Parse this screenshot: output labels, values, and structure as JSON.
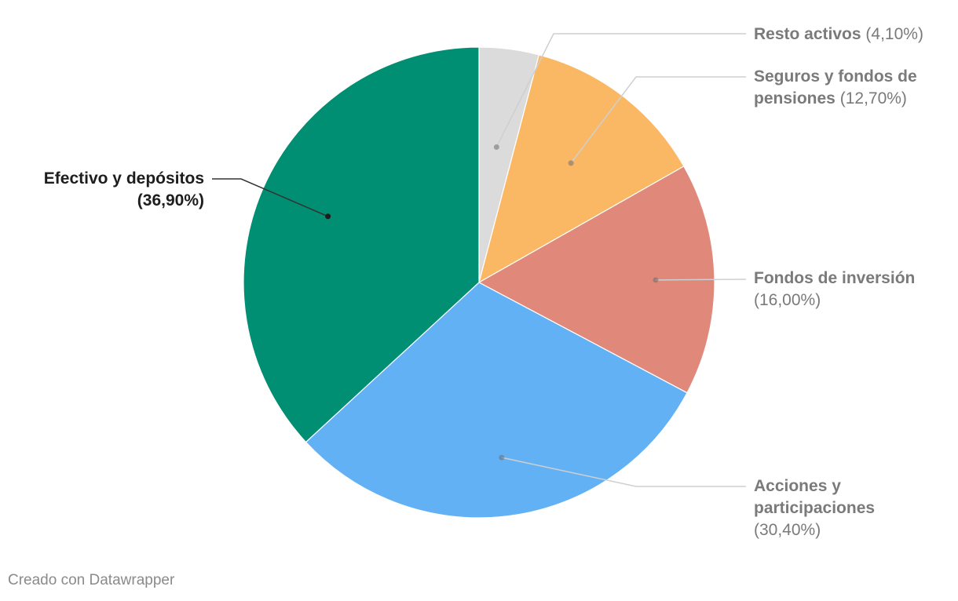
{
  "chart_data": {
    "type": "pie",
    "start_angle_deg": 0,
    "direction": "clockwise",
    "slices": [
      {
        "label": "Resto activos",
        "value": 4.1,
        "display": "(4,10%)",
        "color": "#dbdbdb"
      },
      {
        "label": "Seguros y fondos de pensiones",
        "value": 12.7,
        "display": "(12,70%)",
        "color": "#fab865"
      },
      {
        "label": "Fondos de inversión",
        "value": 16.0,
        "display": "(16,00%)",
        "color": "#e0887a"
      },
      {
        "label": "Acciones y participaciones",
        "value": 30.4,
        "display": "(30,40%)",
        "color": "#63b1f5"
      },
      {
        "label": "Efectivo y depósitos",
        "value": 36.9,
        "display": "(36,90%)",
        "color": "#008f72"
      }
    ],
    "highlighted_slice": "Efectivo y depósitos"
  },
  "labels": {
    "resto": {
      "name": "Resto activos",
      "pct": "(4,10%)"
    },
    "seguros": {
      "name_line1": "Seguros y fondos de",
      "name_line2": "pensiones",
      "pct": "(12,70%)"
    },
    "fondos": {
      "name": "Fondos de inversión",
      "pct": "(16,00%)"
    },
    "acciones": {
      "name_line1": "Acciones y",
      "name_line2": "participaciones",
      "pct": "(30,40%)"
    },
    "efectivo": {
      "name": "Efectivo y depósitos",
      "pct": "(36,90%)"
    }
  },
  "footer": {
    "credit": "Creado con Datawrapper"
  }
}
